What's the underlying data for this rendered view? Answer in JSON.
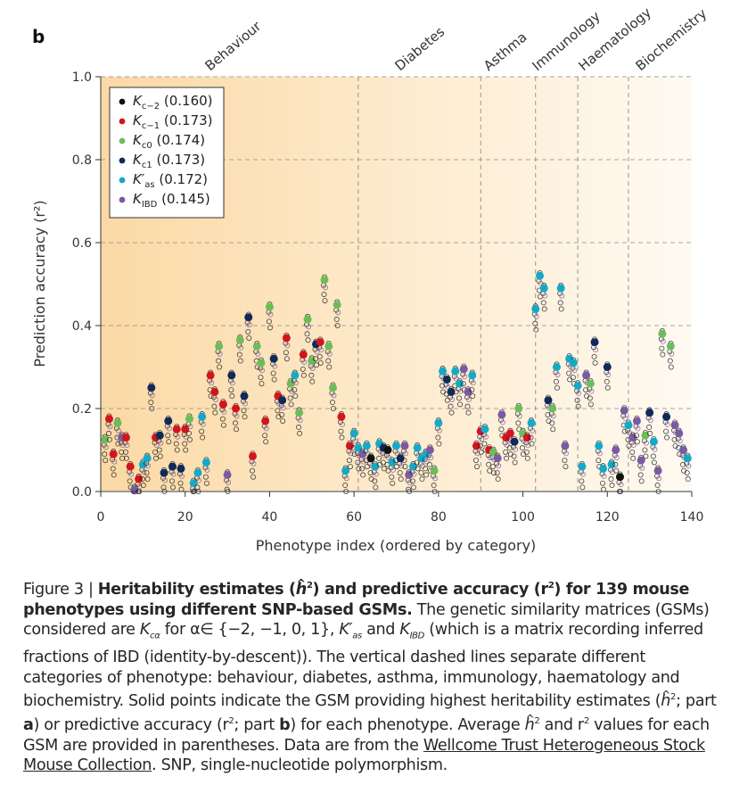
{
  "panel_label": "b",
  "categories": [
    {
      "name": "Behaviour",
      "start": 0,
      "end": 61
    },
    {
      "name": "Diabetes",
      "start": 61,
      "end": 90
    },
    {
      "name": "Asthma",
      "start": 90,
      "end": 103
    },
    {
      "name": "Immunology",
      "start": 103,
      "end": 113
    },
    {
      "name": "Haematology",
      "start": 113,
      "end": 125
    },
    {
      "name": "Biochemistry",
      "start": 125,
      "end": 142
    }
  ],
  "category_dividers": [
    61,
    90,
    103,
    113,
    125
  ],
  "legend": [
    {
      "label": "K",
      "sub": "c−2",
      "avg": "(0.160)",
      "color": "#111111"
    },
    {
      "label": "K",
      "sub": "c−1",
      "avg": "(0.173)",
      "color": "#d3141e"
    },
    {
      "label": "K",
      "sub": "c0",
      "avg": "(0.174)",
      "color": "#6cbd5a"
    },
    {
      "label": "K",
      "sub": "c1",
      "avg": "(0.173)",
      "color": "#0e2a5a"
    },
    {
      "label": "K′",
      "sub": "as",
      "avg": "(0.172)",
      "color": "#15a9c8"
    },
    {
      "label": "K",
      "sub": "IBD",
      "avg": "(0.145)",
      "color": "#7a5aa0"
    }
  ],
  "chart_data": {
    "type": "scatter",
    "xlabel": "Phenotype index (ordered by category)",
    "ylabel": "Prediction accuracy (r²)",
    "xlim": [
      0,
      140
    ],
    "ylim": [
      0,
      1.0
    ],
    "xticks": [
      "0",
      "20",
      "40",
      "60",
      "80",
      "100",
      "120",
      "140"
    ],
    "yticks": [
      "0.0",
      "0.2",
      "0.4",
      "0.6",
      "0.8",
      "1.0"
    ],
    "grid": "horizontal dashed",
    "legend_position": "top-left",
    "best_points": {
      "x": [
        1,
        2,
        3,
        4,
        5,
        6,
        7,
        8,
        9,
        10,
        11,
        12,
        13,
        14,
        15,
        16,
        17,
        18,
        19,
        20,
        21,
        22,
        23,
        24,
        25,
        26,
        27,
        28,
        29,
        30,
        31,
        32,
        33,
        34,
        35,
        36,
        37,
        38,
        39,
        40,
        41,
        42,
        43,
        44,
        45,
        46,
        47,
        48,
        49,
        50,
        51,
        52,
        53,
        54,
        55,
        56,
        57,
        58,
        59,
        60,
        61,
        62,
        63,
        64,
        65,
        66,
        67,
        68,
        69,
        70,
        71,
        72,
        73,
        74,
        75,
        76,
        77,
        78,
        79,
        80,
        81,
        82,
        83,
        84,
        85,
        86,
        87,
        88,
        89,
        90,
        91,
        92,
        93,
        94,
        95,
        96,
        97,
        98,
        99,
        100,
        101,
        102,
        103,
        104,
        105,
        106,
        107,
        108,
        109,
        110,
        111,
        112,
        113,
        114,
        115,
        116,
        117,
        118,
        119,
        120,
        121,
        122,
        123,
        124,
        125,
        126,
        127,
        128,
        129,
        130,
        131,
        132,
        133,
        134,
        135,
        136,
        137,
        138,
        139
      ],
      "y": [
        0.125,
        0.175,
        0.09,
        0.165,
        0.13,
        0.13,
        0.06,
        0.005,
        0.03,
        0.065,
        0.08,
        0.25,
        0.13,
        0.135,
        0.045,
        0.17,
        0.06,
        0.15,
        0.055,
        0.15,
        0.175,
        0.02,
        0.045,
        0.18,
        0.07,
        0.28,
        0.24,
        0.35,
        0.21,
        0.04,
        0.28,
        0.2,
        0.365,
        0.23,
        0.42,
        0.085,
        0.35,
        0.31,
        0.17,
        0.445,
        0.32,
        0.23,
        0.22,
        0.37,
        0.26,
        0.28,
        0.19,
        0.33,
        0.415,
        0.315,
        0.355,
        0.36,
        0.51,
        0.35,
        0.25,
        0.45,
        0.18,
        0.05,
        0.11,
        0.14,
        0.105,
        0.09,
        0.11,
        0.08,
        0.06,
        0.115,
        0.105,
        0.1,
        0.07,
        0.11,
        0.08,
        0.11,
        0.04,
        0.06,
        0.105,
        0.08,
        0.09,
        0.1,
        0.05,
        0.165,
        0.29,
        0.27,
        0.24,
        0.29,
        0.26,
        0.295,
        0.24,
        0.28,
        0.11,
        0.145,
        0.15,
        0.1,
        0.095,
        0.08,
        0.185,
        0.13,
        0.14,
        0.12,
        0.2,
        0.14,
        0.13,
        0.165,
        0.44,
        0.52,
        0.49,
        0.22,
        0.2,
        0.3,
        0.49,
        0.11,
        0.32,
        0.31,
        0.255,
        0.06,
        0.28,
        0.26,
        0.36,
        0.11,
        0.055,
        0.3,
        0.065,
        0.1,
        0.035,
        0.195,
        0.16,
        0.13,
        0.17,
        0.075,
        0.135,
        0.19,
        0.12,
        0.05,
        0.38,
        0.18,
        0.35,
        0.16,
        0.14,
        0.1,
        0.08
      ],
      "series_index": [
        2,
        1,
        1,
        2,
        5,
        1,
        1,
        5,
        1,
        4,
        4,
        3,
        1,
        3,
        3,
        3,
        3,
        1,
        3,
        1,
        2,
        4,
        4,
        4,
        4,
        1,
        1,
        2,
        1,
        5,
        3,
        1,
        2,
        3,
        3,
        1,
        2,
        2,
        1,
        2,
        3,
        1,
        3,
        1,
        2,
        4,
        2,
        1,
        2,
        2,
        3,
        1,
        2,
        2,
        2,
        2,
        1,
        4,
        1,
        4,
        4,
        5,
        4,
        0,
        4,
        4,
        3,
        0,
        4,
        4,
        3,
        5,
        5,
        4,
        4,
        4,
        4,
        5,
        2,
        4,
        4,
        3,
        3,
        4,
        4,
        5,
        5,
        4,
        1,
        1,
        4,
        1,
        2,
        5,
        5,
        1,
        1,
        3,
        2,
        2,
        1,
        4,
        4,
        4,
        4,
        3,
        2,
        4,
        4,
        5,
        4,
        4,
        4,
        4,
        5,
        2,
        3,
        4,
        4,
        3,
        4,
        5,
        0,
        5,
        4,
        5,
        5,
        5,
        2,
        3,
        4,
        5,
        2,
        3,
        2,
        5,
        5,
        5,
        4
      ]
    }
  },
  "caption": {
    "figure_label": "Figure 3 |",
    "title_a": "Heritability estimates (",
    "title_h": "h",
    "title_b": ") and predictive accuracy (r",
    "title_c": ") for 139 mouse phenotypes using different SNP-based GSMs.",
    "body_1": "The genetic similarity matrices (GSMs) considered are ",
    "body_k1": "K",
    "body_k1_sub": "cα",
    "body_2": " for α∈ {−2, −1, 0, 1}, ",
    "body_k2": "K′",
    "body_k2_sub": "as",
    "body_3": " and ",
    "body_k3": "K",
    "body_k3_sub": "IBD",
    "body_4": " (which is a matrix recording inferred fractions of IBD (identity-by-descent)). The vertical dashed lines separate different categories of phenotype: behaviour, diabetes, asthma, immunology, haematology and biochemistry. Solid points indicate the GSM providing highest heritability estimates (",
    "body_h1": "h",
    "body_5": "; part ",
    "part_a": "a",
    "body_6": ") or predictive accuracy (r",
    "body_7": "; part ",
    "part_b": "b",
    "body_8": ") for each phenotype. Average ",
    "body_h2": "h",
    "body_9": " and r",
    "body_10": " values for each GSM are provided in parentheses. Data are from the ",
    "link_text": "Wellcome Trust Heterogeneous Stock Mouse Collection",
    "body_11": ". SNP, single-nucleotide polymorphism."
  }
}
